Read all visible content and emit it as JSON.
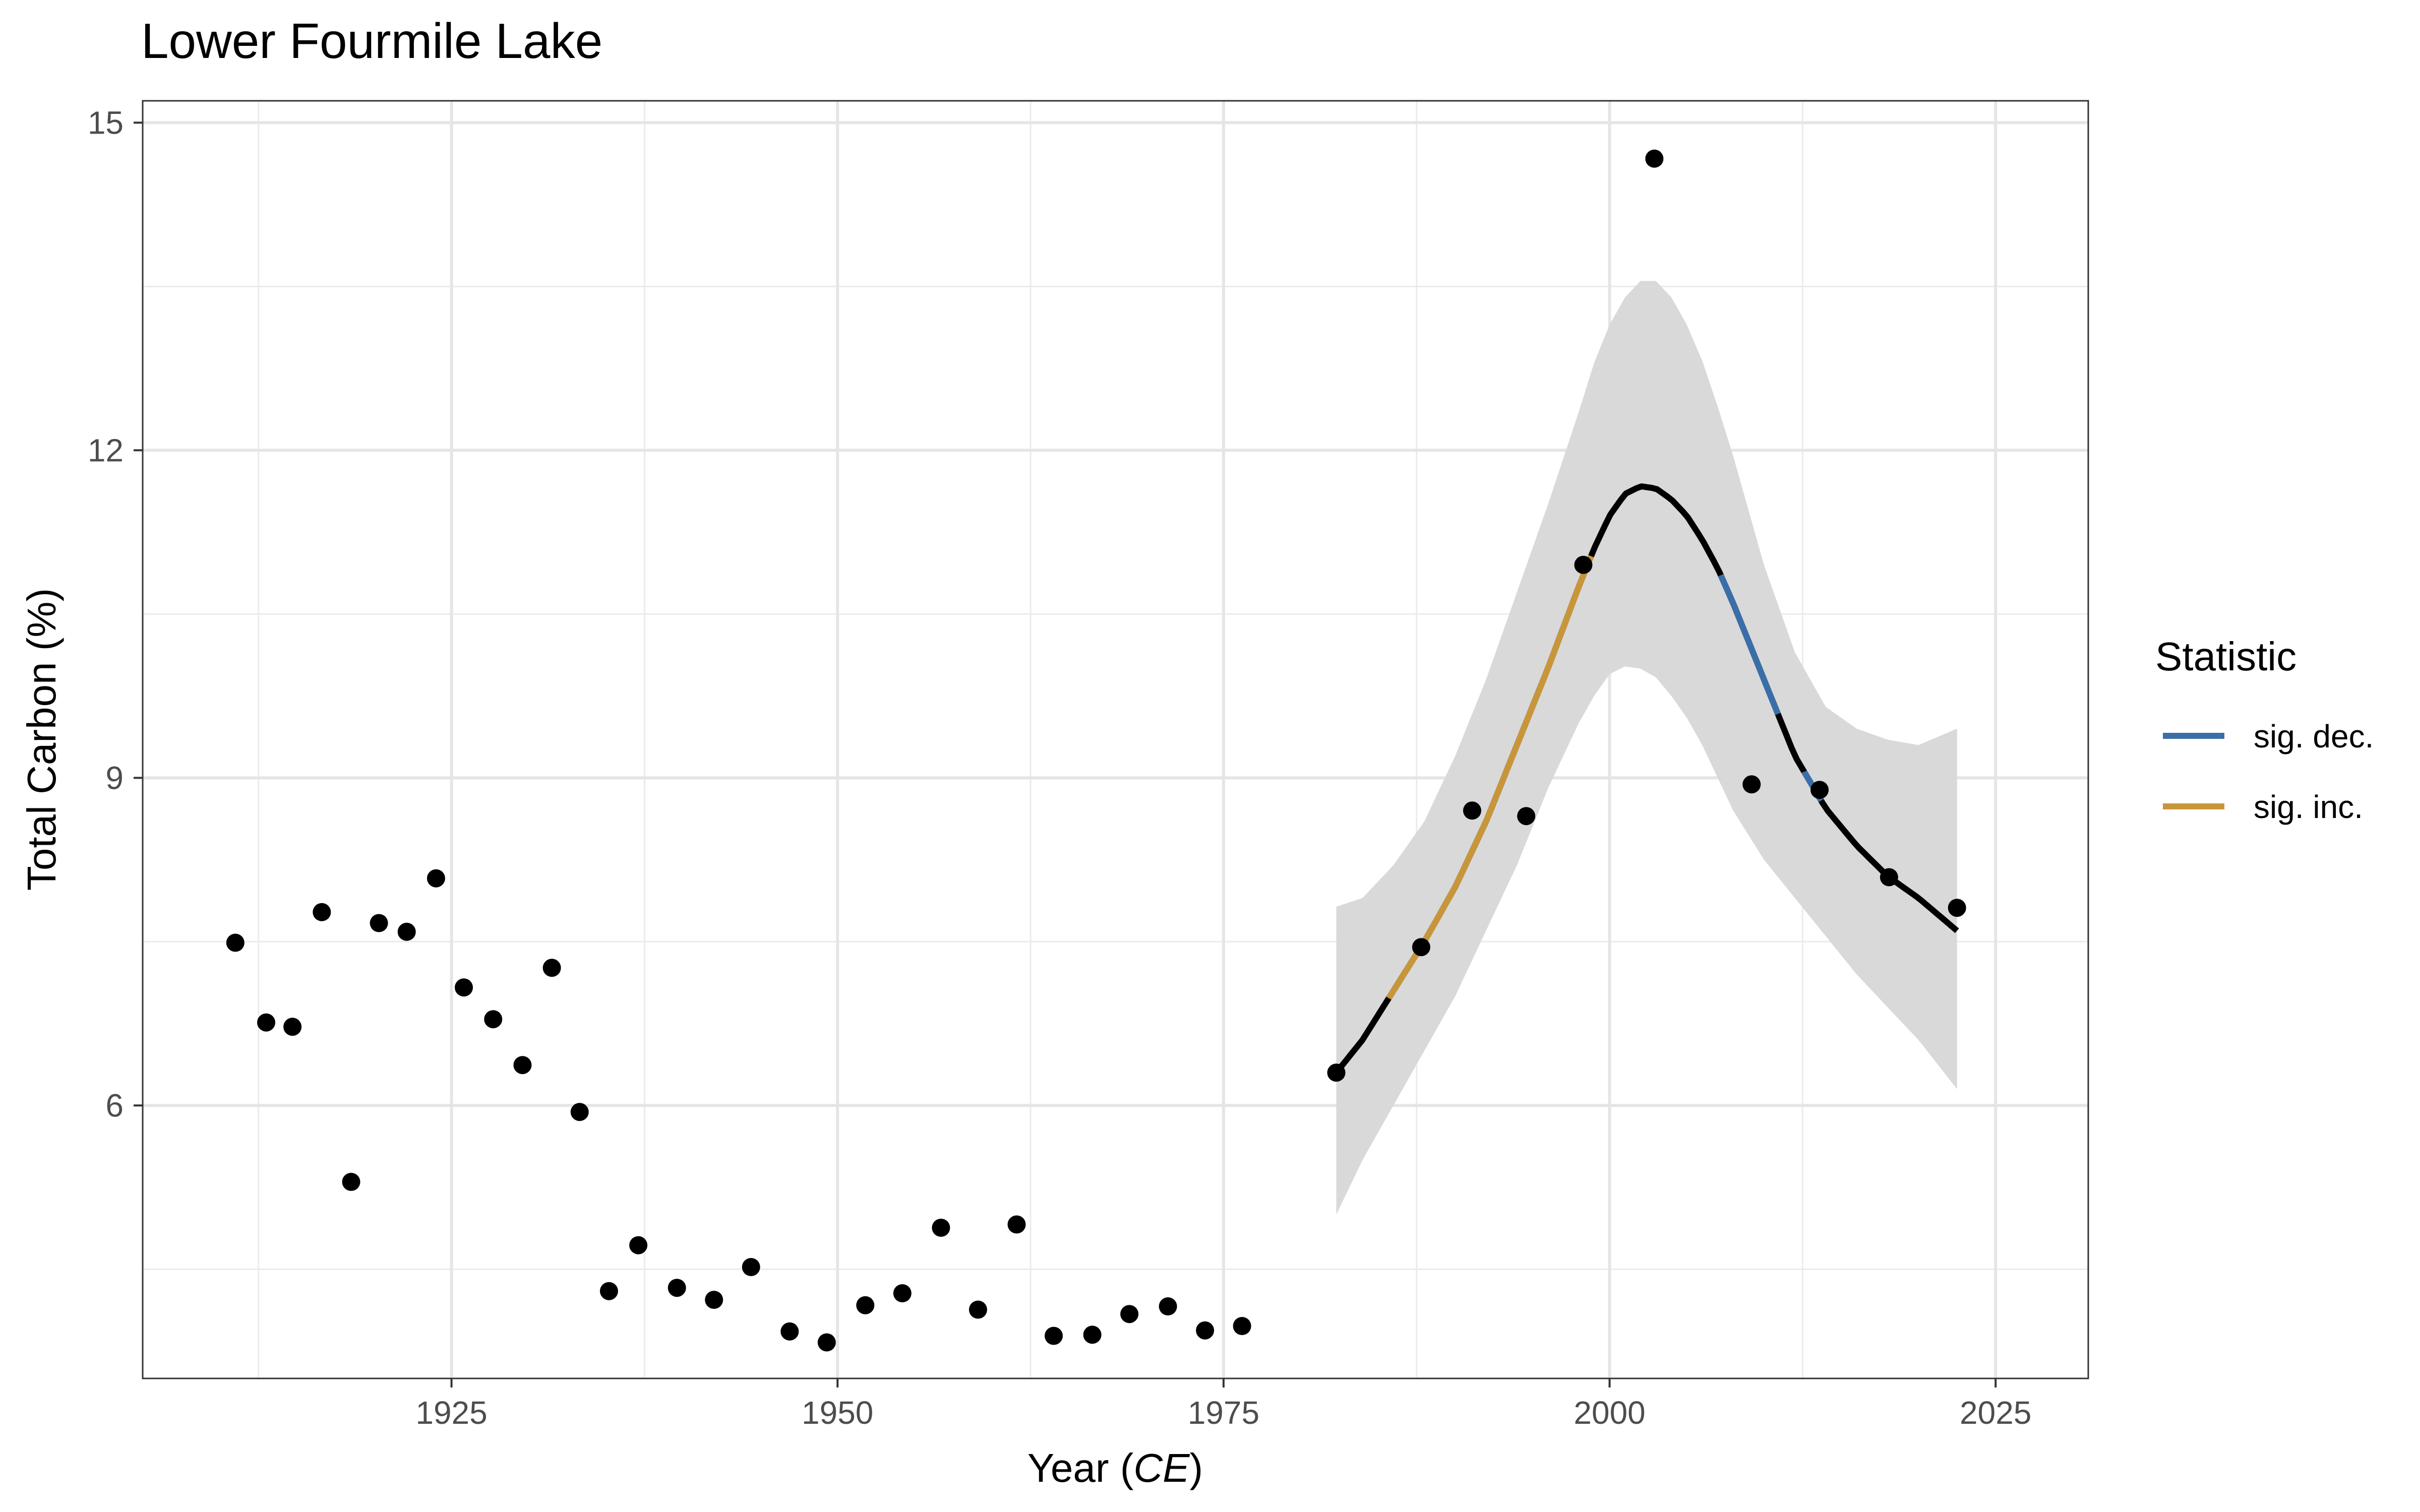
{
  "chart_data": {
    "type": "scatter",
    "title": "Lower Fourmile Lake",
    "xlabel": "Year",
    "xlabel_unit": "CE",
    "ylabel": "Total Carbon (%)",
    "xlim": [
      1905,
      2031
    ],
    "ylim": [
      3.5,
      15.2
    ],
    "xticks": [
      1925,
      1950,
      1975,
      2000,
      2025
    ],
    "yticks": [
      6,
      9,
      12,
      15
    ],
    "xticklabels": [
      "1925",
      "1950",
      "1975",
      "2000",
      "2025"
    ],
    "yticklabels": [
      "6",
      "9",
      "12",
      "15"
    ],
    "grid": true,
    "legend_position": "right",
    "legend": {
      "title": "Statistic",
      "entries": [
        {
          "label": "sig. dec.",
          "color": "#3a6ea8"
        },
        {
          "label": "sig. inc.",
          "color": "#c8963a"
        }
      ]
    },
    "points": {
      "x": [
        1911,
        1913,
        1914.7,
        1916.6,
        1918.5,
        1920.3,
        1922.1,
        1924,
        1925.8,
        1927.7,
        1929.6,
        1931.5,
        1933.3,
        1935.2,
        1937.1,
        1939.6,
        1942,
        1944.4,
        1946.9,
        1949.3,
        1951.8,
        1954.2,
        1956.7,
        1959.1,
        1961.6,
        1964,
        1966.5,
        1968.9,
        1971.4,
        1973.8,
        1976.2,
        1982.3,
        1987.8,
        1991.1,
        1994.6,
        1998.3,
        2002.9,
        2009.2,
        2013.6,
        2018.1,
        2022.5
      ],
      "y": [
        7.49,
        6.76,
        6.72,
        7.77,
        5.3,
        7.67,
        7.59,
        8.08,
        7.08,
        6.79,
        6.37,
        7.26,
        5.94,
        4.3,
        4.72,
        4.33,
        4.22,
        4.52,
        3.93,
        3.83,
        4.17,
        4.28,
        4.88,
        4.13,
        4.91,
        3.89,
        3.9,
        4.09,
        4.16,
        3.94,
        3.98,
        6.3,
        7.45,
        8.7,
        8.65,
        10.95,
        14.67,
        8.94,
        8.89,
        8.09,
        7.81
      ]
    },
    "fit": {
      "x": [
        1982.3,
        1984,
        1986,
        1988,
        1990,
        1992,
        1994,
        1996,
        1998,
        1999,
        2000,
        2001,
        2002,
        2003,
        2004,
        2005,
        2006,
        2007,
        2008,
        2010,
        2012,
        2014,
        2016,
        2018,
        2020,
        2022.5
      ],
      "y": [
        6.3,
        6.6,
        7.05,
        7.5,
        8.0,
        8.6,
        9.3,
        10.0,
        10.75,
        11.1,
        11.4,
        11.6,
        11.67,
        11.65,
        11.55,
        11.4,
        11.18,
        10.92,
        10.6,
        9.9,
        9.2,
        8.72,
        8.38,
        8.1,
        7.9,
        7.6
      ],
      "lower": [
        5.0,
        5.5,
        6.0,
        6.5,
        7.0,
        7.6,
        8.2,
        8.9,
        9.5,
        9.75,
        9.95,
        10.02,
        10.0,
        9.92,
        9.75,
        9.55,
        9.3,
        9.0,
        8.7,
        8.25,
        7.9,
        7.55,
        7.2,
        6.9,
        6.6,
        6.15
      ],
      "upper": [
        7.82,
        7.9,
        8.2,
        8.6,
        9.2,
        9.9,
        10.7,
        11.5,
        12.35,
        12.8,
        13.15,
        13.4,
        13.55,
        13.55,
        13.4,
        13.15,
        12.82,
        12.4,
        11.95,
        10.95,
        10.15,
        9.65,
        9.45,
        9.35,
        9.3,
        9.45
      ],
      "sig_inc_range": [
        1985.7,
        1998.8
      ],
      "sig_dec_range": [
        [
          2007.2,
          2010.9
        ],
        [
          2012.6,
          2013.7
        ]
      ]
    },
    "colors": {
      "points": "#000000",
      "fit_line": "#000000",
      "ribbon": "#d9d9d9",
      "sig_dec": "#3a6ea8",
      "sig_inc": "#c8963a"
    }
  }
}
